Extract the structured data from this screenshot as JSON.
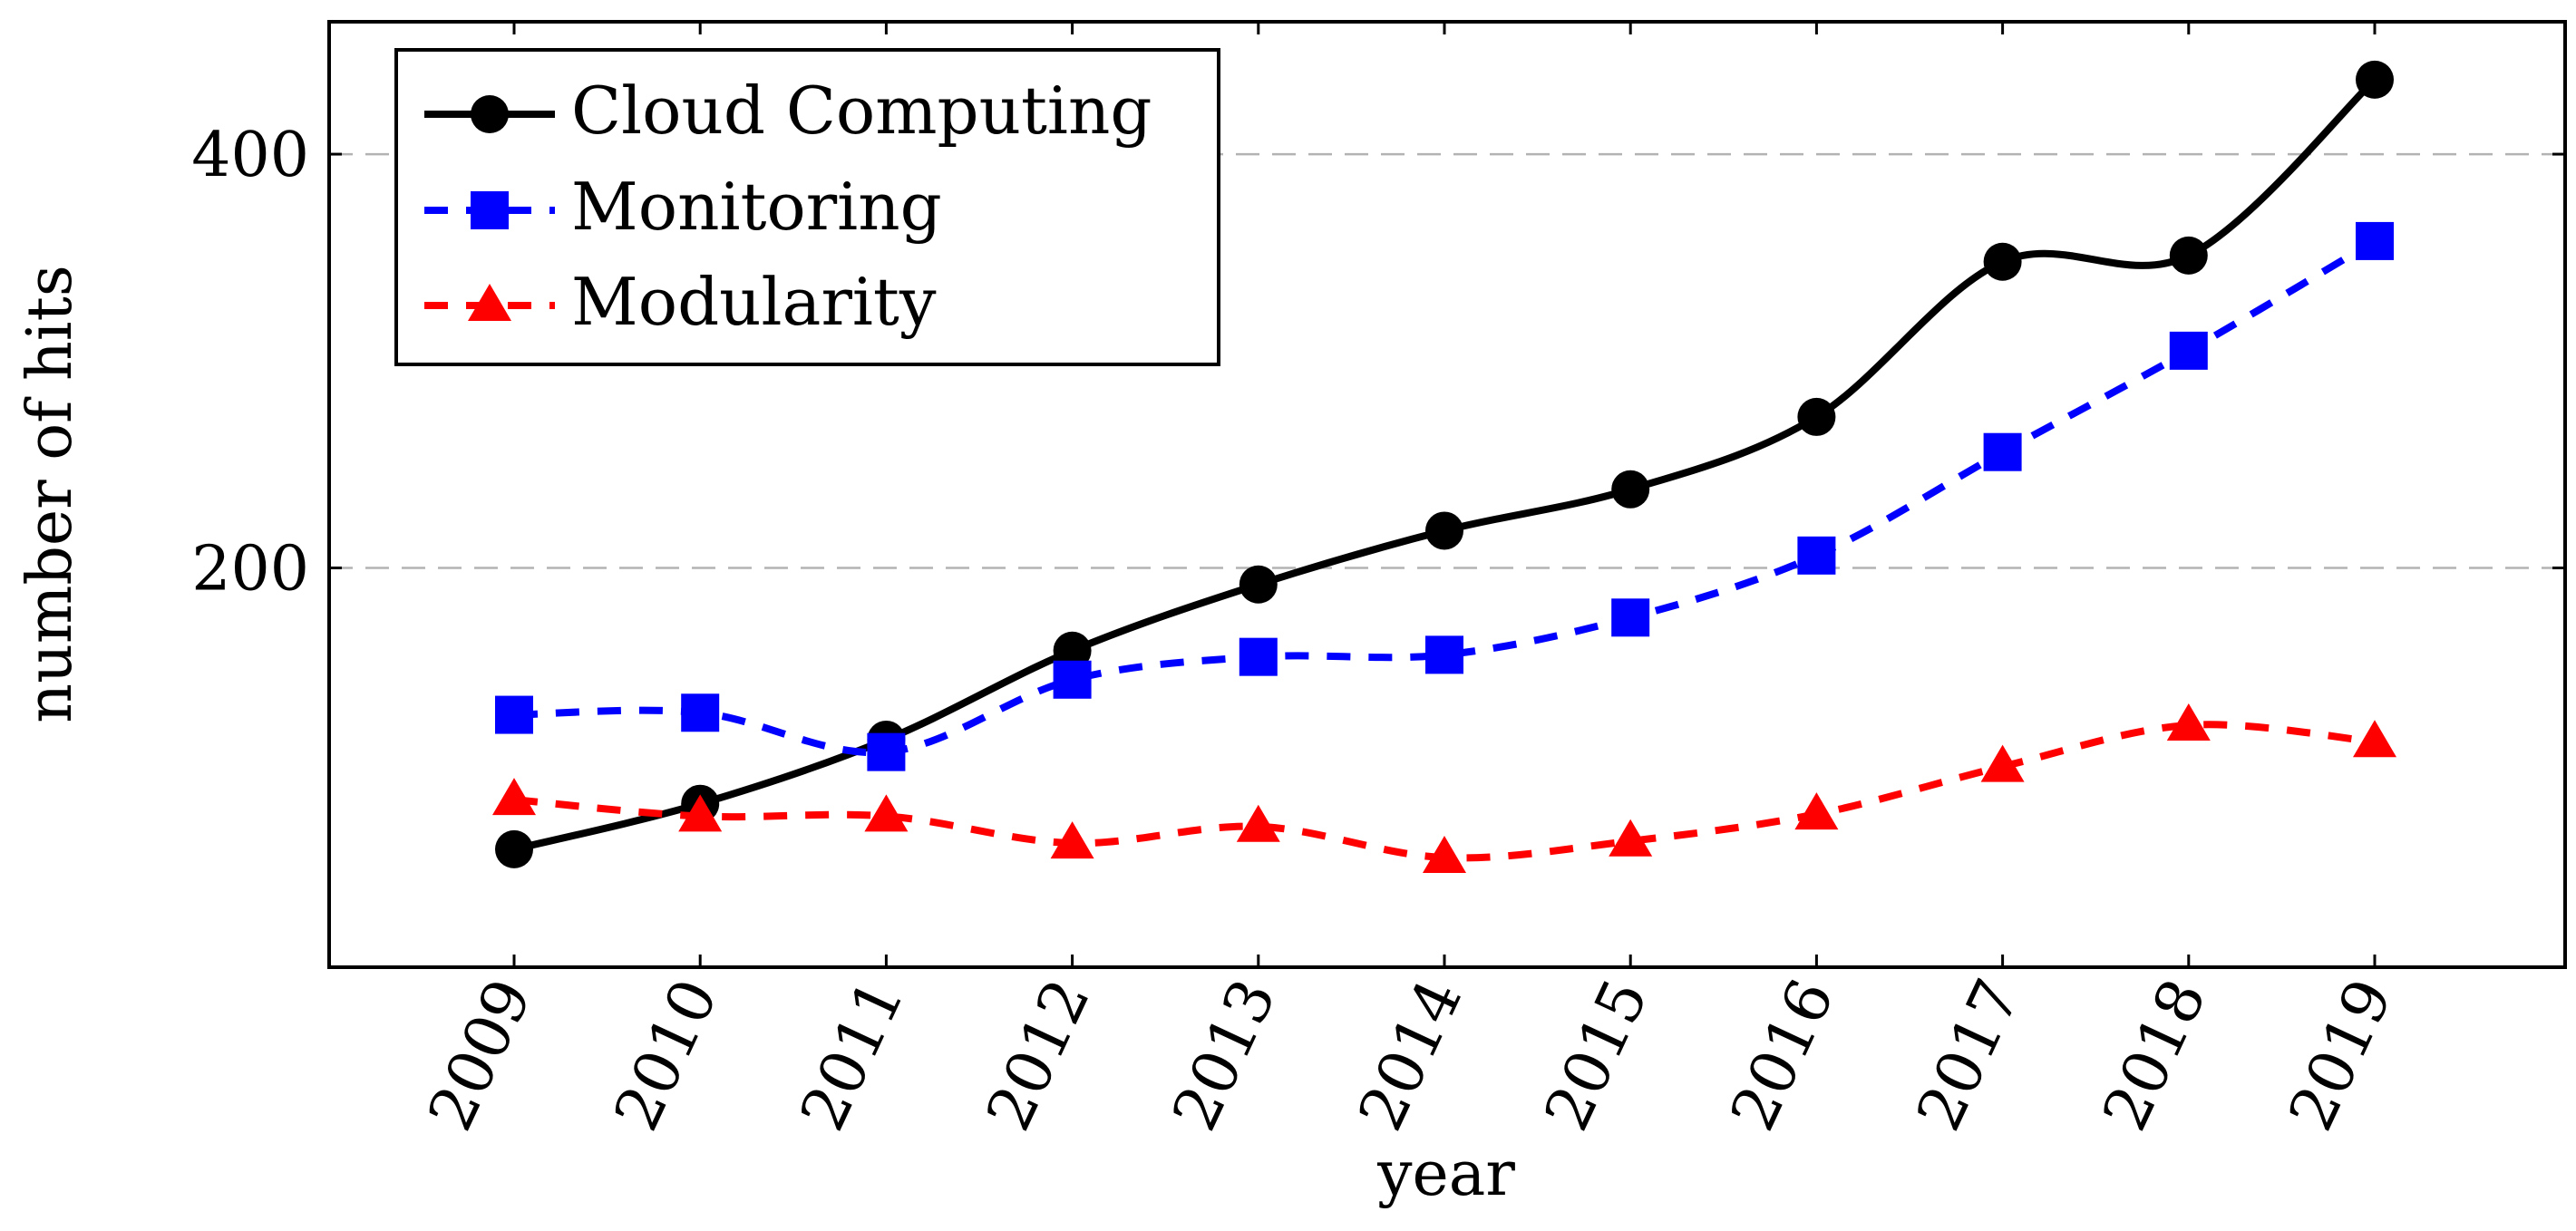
{
  "chart_data": {
    "type": "line",
    "title": "",
    "xlabel": "year",
    "ylabel": "number of hits",
    "categories": [
      "2009",
      "2010",
      "2011",
      "2012",
      "2013",
      "2014",
      "2015",
      "2016",
      "2017",
      "2018",
      "2019"
    ],
    "y_ticks": [
      "200",
      "400"
    ],
    "ylim": [
      7,
      464
    ],
    "grid": "horizontal dashed at 200 and 400",
    "legend_position": "top-left",
    "series": [
      {
        "name": "Cloud Computing",
        "color": "#000000",
        "marker": "circle",
        "line_style": "solid",
        "values": [
          64,
          86,
          117,
          160,
          192,
          218,
          238,
          273,
          348,
          351,
          436
        ]
      },
      {
        "name": "Monitoring",
        "color": "#0000ff",
        "marker": "square",
        "line_style": "dashed",
        "values": [
          129,
          130,
          111,
          146,
          157,
          158,
          176,
          206,
          256,
          305,
          358
        ]
      },
      {
        "name": "Modularity",
        "color": "#ff0000",
        "marker": "triangle",
        "line_style": "dashed",
        "values": [
          88,
          80,
          80,
          67,
          75,
          60,
          68,
          81,
          104,
          124,
          116
        ]
      }
    ]
  }
}
